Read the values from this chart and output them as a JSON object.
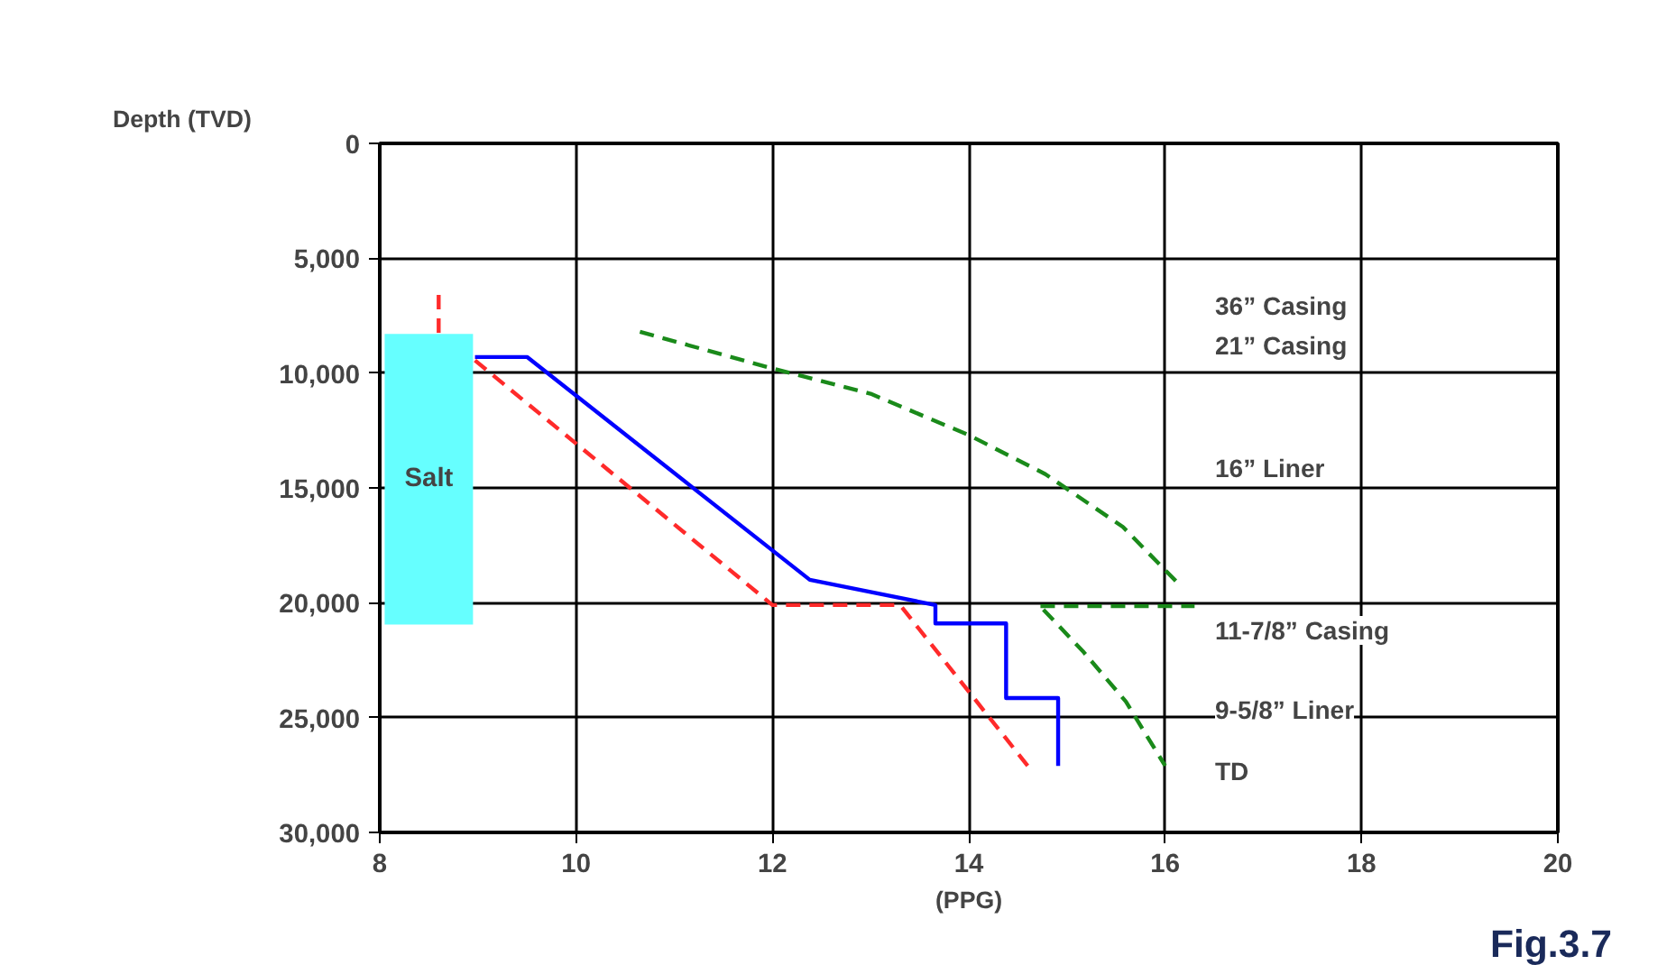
{
  "chart_data": {
    "type": "line",
    "xlabel": "(PPG)",
    "ylabel": "Depth (TVD)",
    "xlim": [
      8,
      20
    ],
    "xticks": [
      8,
      10,
      12,
      14,
      16,
      18,
      20
    ],
    "ylim": [
      30000,
      0
    ],
    "yticks": [
      0,
      {
        "value": 5000,
        "label": "5,000"
      },
      {
        "value": 10000,
        "label": "10,000"
      },
      {
        "value": 15000,
        "label": "15,000"
      },
      {
        "value": 20000,
        "label": "20,000"
      },
      {
        "value": 25000,
        "label": "25,000"
      },
      {
        "value": 30000,
        "label": "30,000"
      }
    ],
    "grid": true,
    "series": [
      {
        "type": "bar",
        "name": "Salt",
        "color": "#66ffff",
        "x": [
          8.5
        ],
        "base": [
          8300
        ],
        "values": [
          12650
        ]
      },
      {
        "color": "#ff2a2a",
        "line_style": "dashed",
        "x": [
          8.6,
          8.6,
          8.8,
          8.97,
          12,
          13.3,
          14.6
        ],
        "values": [
          6600,
          8300,
          null,
          9450,
          20100,
          20100,
          27100
        ]
      },
      {
        "color": "#0000ff",
        "line_style": "solid",
        "x": [
          8.97,
          9.5,
          12.38,
          13.66,
          13.66,
          14.38,
          14.38,
          14.91,
          14.91
        ],
        "values": [
          9300,
          9300,
          19000,
          20100,
          20900,
          20900,
          24150,
          24150,
          27100
        ]
      },
      {
        "color": "#1a8a1a",
        "line_style": "dashed",
        "x": [
          10.65,
          12,
          13.0,
          14.0,
          14.78,
          15.57,
          16.12
        ],
        "values": [
          8200,
          9800,
          10900,
          12700,
          14400,
          16700,
          19100
        ]
      },
      {
        "color": "#1a8a1a",
        "line_style": "dashed",
        "x": [
          14.76,
          15.17,
          15.6,
          16.0
        ],
        "values": [
          20300,
          22150,
          24300,
          27100
        ]
      },
      {
        "color": "#1a8a1a",
        "line_style": "dashed",
        "x": [
          14.73,
          16.3
        ],
        "values": [
          20150,
          20150
        ]
      }
    ],
    "annotations": [
      "36” Casing",
      "21” Casing",
      "16” Liner",
      "11-7/8” Casing",
      "9-5/8” Liner",
      "TD",
      "Fig.3.7"
    ]
  }
}
